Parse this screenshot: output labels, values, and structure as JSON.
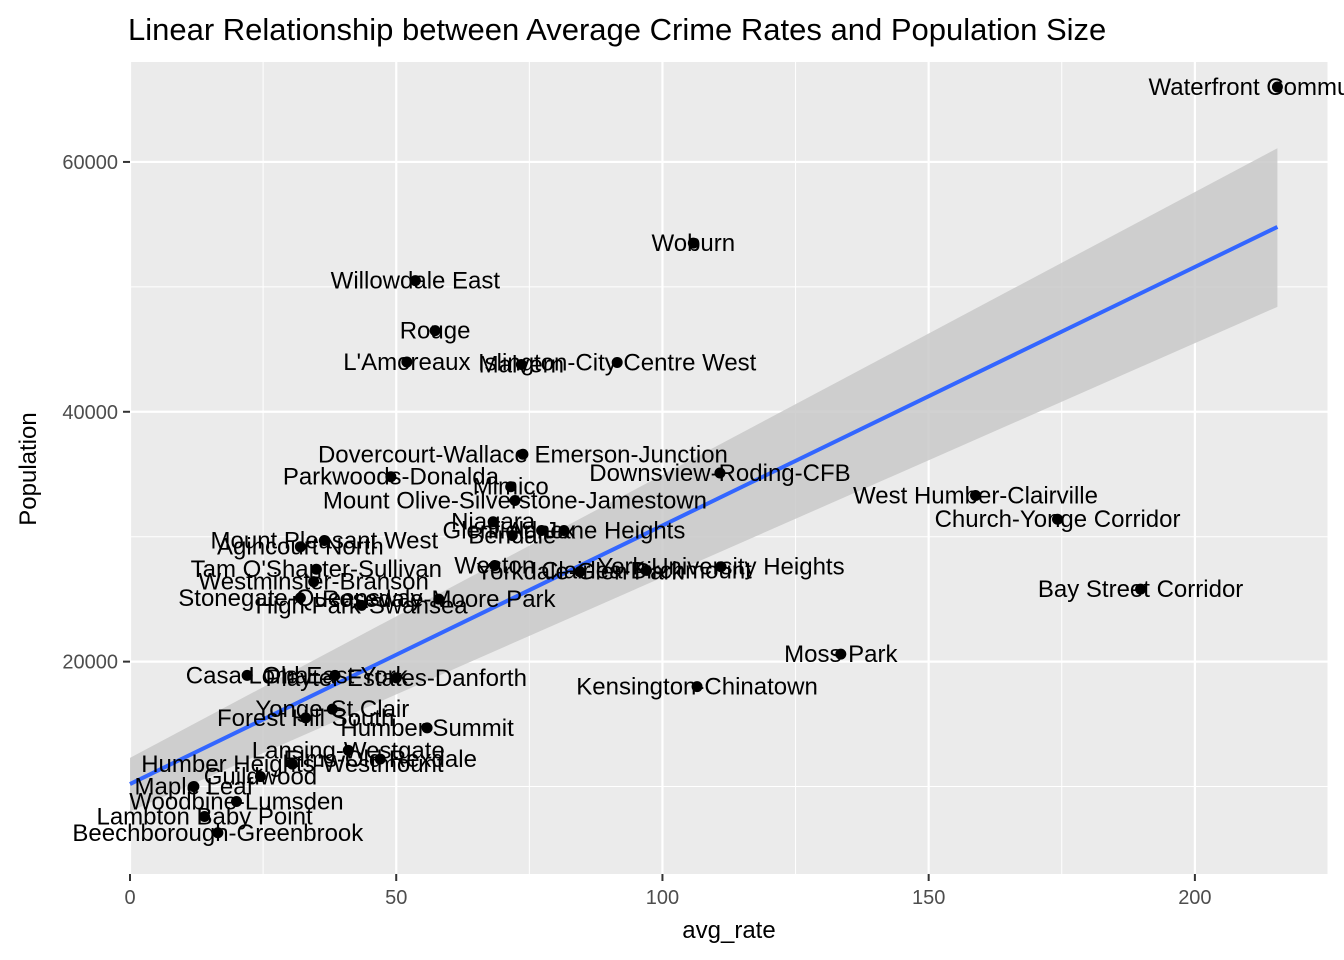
{
  "chart_data": {
    "type": "scatter",
    "title": "Linear Relationship between Average Crime Rates and Population Size",
    "xlabel": "avg_rate",
    "ylabel": "Population",
    "xlim": [
      0,
      225
    ],
    "ylim": [
      3000,
      68000
    ],
    "x_ticks": [
      0,
      50,
      100,
      150,
      200
    ],
    "x_tick_labels": [
      "0",
      "50",
      "100",
      "150",
      "200"
    ],
    "y_ticks": [
      20000,
      40000,
      60000
    ],
    "y_tick_labels": [
      "20000",
      "40000",
      "60000"
    ],
    "grid": true,
    "legend": "none",
    "colors": {
      "panel": "#ebebeb",
      "grid": "#ffffff",
      "point": "#000000",
      "fit_line": "#3366ff",
      "ribbon": "#c9c9c9"
    },
    "fit": {
      "x": [
        0,
        215.5
      ],
      "y": [
        10200,
        54800
      ],
      "ci_lower": [
        8000,
        48400
      ],
      "ci_upper": [
        12300,
        61100
      ]
    },
    "points": [
      {
        "label": "Waterfront Communities",
        "x": 215.5,
        "y": 66000
      },
      {
        "label": "Woburn",
        "x": 105.8,
        "y": 53500
      },
      {
        "label": "Willowdale East",
        "x": 53.6,
        "y": 50500
      },
      {
        "label": "Rouge",
        "x": 57.3,
        "y": 46500
      },
      {
        "label": "L'Amoreaux",
        "x": 52.0,
        "y": 43990
      },
      {
        "label": "Islington-City Centre West",
        "x": 91.5,
        "y": 43950
      },
      {
        "label": "Malvern",
        "x": 73.5,
        "y": 43790
      },
      {
        "label": "Dovercourt-Wallace Emerson-Junction",
        "x": 73.8,
        "y": 36600
      },
      {
        "label": "Downsview-Roding-CFB",
        "x": 110.8,
        "y": 35100
      },
      {
        "label": "Parkwoods-Donalda",
        "x": 49.0,
        "y": 34800
      },
      {
        "label": "Mimico",
        "x": 71.5,
        "y": 34000
      },
      {
        "label": "West Humber-Clairville",
        "x": 158.8,
        "y": 33300
      },
      {
        "label": "Mount Olive-Silverstone-Jamestown",
        "x": 72.3,
        "y": 32900
      },
      {
        "label": "Church-Yonge Corridor",
        "x": 174.2,
        "y": 31400
      },
      {
        "label": "Niagara",
        "x": 68.2,
        "y": 31200
      },
      {
        "label": "Glenfield-Jane Heights",
        "x": 81.5,
        "y": 30500
      },
      {
        "label": "Annex",
        "x": 77.3,
        "y": 30500
      },
      {
        "label": "Bendale",
        "x": 71.8,
        "y": 30100
      },
      {
        "label": "Mount Pleasant West",
        "x": 36.5,
        "y": 29700
      },
      {
        "label": "Agincourt North",
        "x": 32.0,
        "y": 29200
      },
      {
        "label": "York University Heights",
        "x": 111.0,
        "y": 27600
      },
      {
        "label": "Clairlea-Birchmount",
        "x": 97.0,
        "y": 27300
      },
      {
        "label": "Yorkdale-Glen Park",
        "x": 84.5,
        "y": 27200
      },
      {
        "label": "Weston",
        "x": 68.5,
        "y": 27700
      },
      {
        "label": "Tam O'Shanter-Sullivan",
        "x": 35.0,
        "y": 27400
      },
      {
        "label": "Westminster-Branson",
        "x": 34.5,
        "y": 26400
      },
      {
        "label": "Bay Street Corridor",
        "x": 189.8,
        "y": 25800
      },
      {
        "label": "Stonegate-Queensway",
        "x": 32.0,
        "y": 25100
      },
      {
        "label": "Rosedale-Moore Park",
        "x": 58.0,
        "y": 25000
      },
      {
        "label": "High Park-Swansea",
        "x": 43.5,
        "y": 24500
      },
      {
        "label": "Moss Park",
        "x": 133.5,
        "y": 20600
      },
      {
        "label": "Kensington-Chinatown",
        "x": 106.5,
        "y": 18000
      },
      {
        "label": "Old East York",
        "x": 38.5,
        "y": 18900
      },
      {
        "label": "Casa Loma",
        "x": 22.0,
        "y": 18900
      },
      {
        "label": "Playter Estates-Danforth",
        "x": 50.0,
        "y": 18700
      },
      {
        "label": "Humber Summit",
        "x": 55.8,
        "y": 14700
      },
      {
        "label": "Yonge-St.Clair",
        "x": 38.0,
        "y": 16200
      },
      {
        "label": "Forest Hill South",
        "x": 33.0,
        "y": 15500
      },
      {
        "label": "Lansing-Westgate",
        "x": 41.0,
        "y": 12900
      },
      {
        "label": "Humber Heights-Westmount",
        "x": 30.5,
        "y": 11800
      },
      {
        "label": "Guildwood",
        "x": 24.5,
        "y": 10800
      },
      {
        "label": "Beechborough-Greenbrook",
        "x": 16.5,
        "y": 6300
      },
      {
        "label": "Lambton Baby Point",
        "x": 14.0,
        "y": 7600
      },
      {
        "label": "Elms-Old Rexdale",
        "x": 47.0,
        "y": 12200
      },
      {
        "label": "Maple Leaf",
        "x": 12.0,
        "y": 10000
      },
      {
        "label": "Woodbine-Lumsden",
        "x": 20.0,
        "y": 8800
      }
    ]
  }
}
